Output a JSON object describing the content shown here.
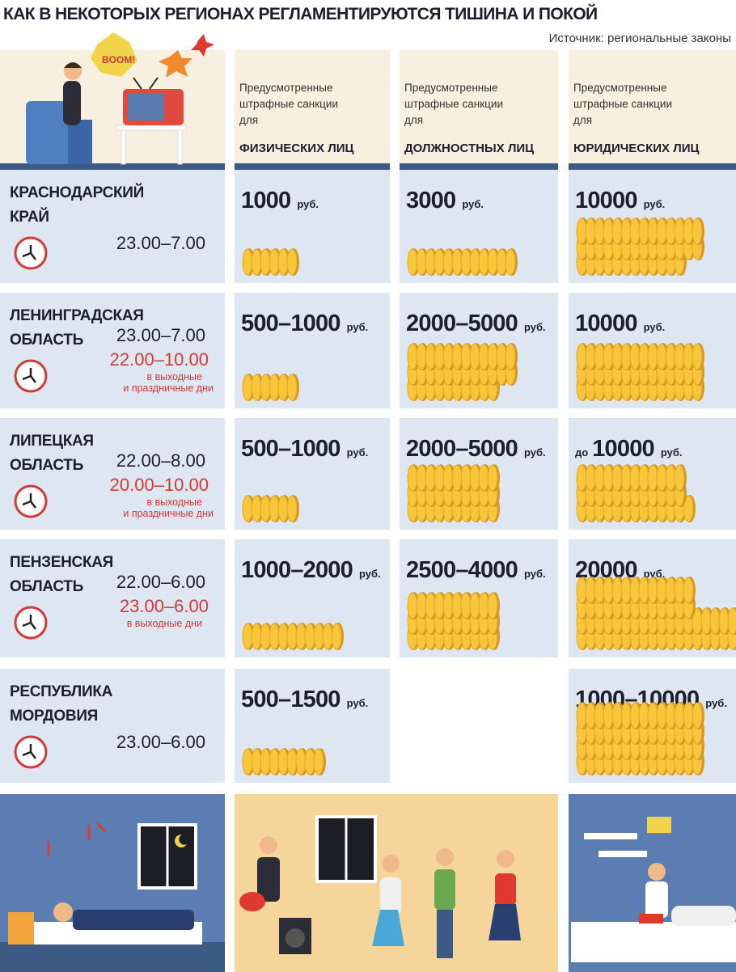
{
  "header": {
    "title": "КАК В НЕКОТОРЫХ РЕГИОНАХ РЕГЛАМЕНТИРУЮТСЯ ТИШИНА И ПОКОЙ",
    "source": "Источник: региональные законы"
  },
  "columns": [
    {
      "lines": [
        "Предусмотренные",
        "штрафные санкции",
        "для"
      ],
      "bold": "ФИЗИЧЕСКИХ ЛИЦ"
    },
    {
      "lines": [
        "Предусмотренные",
        "штрафные санкции",
        "для"
      ],
      "bold": "ДОЛЖНОСТНЫХ ЛИЦ"
    },
    {
      "lines": [
        "Предусмотренные",
        "штрафные санкции",
        "для"
      ],
      "bold": "ЮРИДИЧЕСКИХ ЛИЦ"
    }
  ],
  "rows": [
    {
      "region": [
        "КРАСНОДАРСКИЙ",
        "КРАЙ"
      ],
      "hours": "23.00–7.00",
      "fines": [
        {
          "amount": "1000",
          "unit": "руб."
        },
        {
          "amount": "3000",
          "unit": "руб."
        },
        {
          "amount": "10000",
          "unit": "руб."
        }
      ]
    },
    {
      "region": [
        "ЛЕНИНГРАДСКАЯ",
        "ОБЛАСТЬ"
      ],
      "hours": "23.00–7.00",
      "weekend_hours": "22.00–10.00",
      "note": [
        "в выходные",
        "и праздничные дни"
      ],
      "fines": [
        {
          "amount": "500–1000",
          "unit": "руб."
        },
        {
          "amount": "2000–5000",
          "unit": "руб."
        },
        {
          "amount": "10000",
          "unit": "руб."
        }
      ]
    },
    {
      "region": [
        "ЛИПЕЦКАЯ",
        "ОБЛАСТЬ"
      ],
      "hours": "22.00–8.00",
      "weekend_hours": "20.00–10.00",
      "note": [
        "в выходные",
        "и праздничные дни"
      ],
      "fines": [
        {
          "amount": "500–1000",
          "unit": "руб."
        },
        {
          "amount": "2000–5000",
          "unit": "руб."
        },
        {
          "prefix": "до",
          "amount": "10000",
          "unit": "руб."
        }
      ]
    },
    {
      "region": [
        "ПЕНЗЕНСКАЯ",
        "ОБЛАСТЬ"
      ],
      "hours": "22.00–6.00",
      "weekend_hours": "23.00–6.00",
      "note": [
        "в выходные дни"
      ],
      "fines": [
        {
          "amount": "1000–2000",
          "unit": "руб."
        },
        {
          "amount": "2500–4000",
          "unit": "руб."
        },
        {
          "amount": "20000",
          "unit": "руб."
        }
      ]
    },
    {
      "region": [
        "РЕСПУБЛИКА",
        "МОРДОВИЯ"
      ],
      "hours": "23.00–6.00",
      "fines": [
        {
          "amount": "500–1500",
          "unit": "руб."
        },
        null,
        {
          "amount": "1000–10000",
          "unit": "руб."
        }
      ]
    }
  ]
}
